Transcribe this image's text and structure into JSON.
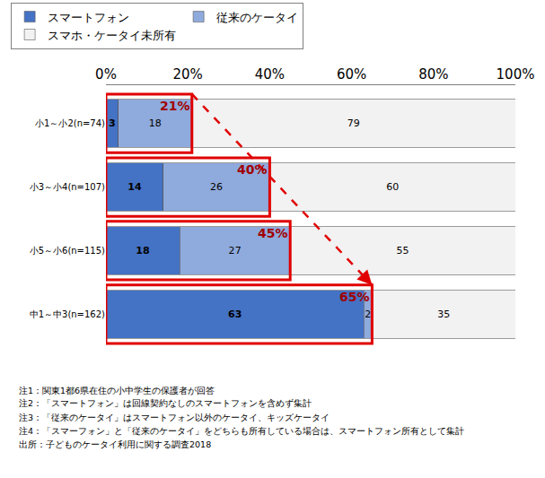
{
  "chart_data": {
    "type": "bar",
    "orientation": "horizontal",
    "stacked": true,
    "data_labels": true,
    "grid": false,
    "legend": "top",
    "categories": [
      "小1～小2(n=74)",
      "小3～小4(n=107)",
      "小5～小6(n=115)",
      "中1～中3(n=162)"
    ],
    "series": [
      {
        "name": "スマートフォン",
        "color": "#4472c4",
        "values": [
          3,
          14,
          18,
          63
        ]
      },
      {
        "name": "従来のケータイ",
        "color": "#8faadc",
        "values": [
          18,
          26,
          27,
          2
        ]
      },
      {
        "name": "スマホ・ケータイ未所有",
        "color": "#f2f2f2",
        "values": [
          79,
          60,
          55,
          35
        ]
      }
    ],
    "xlim": [
      0,
      100
    ],
    "xticks": [
      {
        "value": 0,
        "label": "0%"
      },
      {
        "value": 20,
        "label": "20%"
      },
      {
        "value": 40,
        "label": "40%"
      },
      {
        "value": 60,
        "label": "60%"
      },
      {
        "value": 80,
        "label": "80%"
      },
      {
        "value": 100,
        "label": "100%"
      }
    ],
    "annotations": [
      {
        "category": "小1～小2(n=74)",
        "value": 21,
        "text": "21%"
      },
      {
        "category": "小3～小4(n=107)",
        "value": 40,
        "text": "40%"
      },
      {
        "category": "小5～小6(n=115)",
        "value": 45,
        "text": "45%"
      },
      {
        "category": "中1～中3(n=162)",
        "value": 65,
        "text": "65%"
      }
    ],
    "notes": [
      "注1：関東1都6県在住の小中学生の保護者が回答",
      "注2：「スマートフォン」は回線契約なしのスマートフォンを含めず集計",
      "注3：「従来のケータイ」はスマートフォン以外のケータイ、キッズケータイ",
      "注4：「スマーフォン」と「従来のケータイ」をどちらも所有している場合は、スマートフォン所有として集計",
      "出所：子どものケータイ利用に関する調査2018"
    ]
  }
}
